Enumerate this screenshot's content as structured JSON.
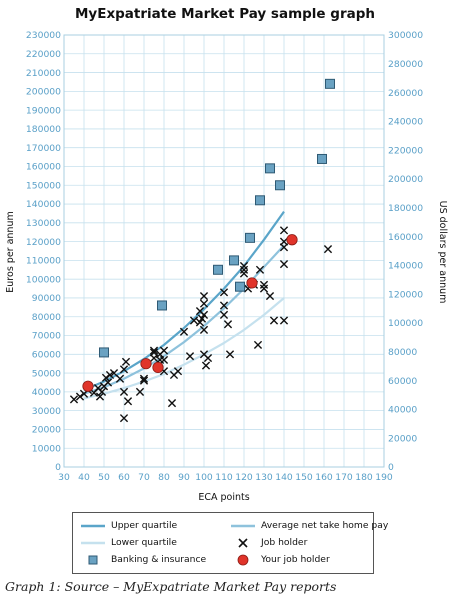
{
  "caption": "Graph 1: Source – MyExpatriate Market Pay reports",
  "colors": {
    "upper_quartile": "#5aa5c9",
    "average": "#8ec2dc",
    "lower_quartile": "#c5e1ee",
    "banking": "#6aa2c2",
    "job_holder": "#111111",
    "your_job_holder": "#e0342a",
    "tick_labels": "#5aa0c8",
    "grid": "#c6e1ee"
  },
  "legend": [
    {
      "key": "upper",
      "label": "Upper quartile",
      "icon": "line-upper"
    },
    {
      "key": "average",
      "label": "Average net take home pay",
      "icon": "line-average"
    },
    {
      "key": "lower",
      "label": "Lower quartile",
      "icon": "line-lower"
    },
    {
      "key": "job",
      "label": "Job holder",
      "icon": "cross-marker"
    },
    {
      "key": "banking",
      "label": "Banking & insurance",
      "icon": "square-marker"
    },
    {
      "key": "your",
      "label": "Your job holder",
      "icon": "red-circle-marker"
    }
  ],
  "chart_data": {
    "type": "scatter",
    "title": "MyExpatriate Market Pay sample graph",
    "xlabel": "ECA points",
    "ylabel": "Euros per annum",
    "y2label": "US dollars per annum",
    "xlim": [
      30,
      190
    ],
    "ylim": [
      0,
      230000
    ],
    "y2lim": [
      0,
      300000
    ],
    "xticks": [
      "30",
      "40",
      "50",
      "60",
      "70",
      "80",
      "90",
      "100",
      "110",
      "120",
      "130",
      "140",
      "150",
      "160",
      "170",
      "180",
      "190"
    ],
    "yticks": [
      "0",
      "10000",
      "20000",
      "30000",
      "40000",
      "50000",
      "60000",
      "70000",
      "80000",
      "90000",
      "100000",
      "110000",
      "120000",
      "130000",
      "140000",
      "150000",
      "160000",
      "170000",
      "180000",
      "190000",
      "200000",
      "210000",
      "220000",
      "230000"
    ],
    "y2ticks": [
      "0",
      "20000",
      "40000",
      "60000",
      "80000",
      "100000",
      "120000",
      "140000",
      "160000",
      "180000",
      "200000",
      "220000",
      "240000",
      "260000",
      "280000",
      "300000"
    ],
    "grid": true,
    "legend_position": "bottom",
    "series": [
      {
        "name": "Upper quartile",
        "kind": "line",
        "x": [
          40,
          50,
          60,
          70,
          80,
          90,
          100,
          110,
          120,
          130,
          140
        ],
        "y": [
          41000,
          45500,
          51000,
          57500,
          65000,
          74000,
          84000,
          95000,
          107000,
          121000,
          136000
        ]
      },
      {
        "name": "Average net take home pay",
        "kind": "line",
        "x": [
          40,
          50,
          60,
          70,
          80,
          90,
          100,
          110,
          120,
          130,
          140
        ],
        "y": [
          39000,
          42500,
          47000,
          52500,
          59000,
          66500,
          75000,
          84500,
          95000,
          106500,
          118000
        ]
      },
      {
        "name": "Lower quartile",
        "kind": "line",
        "x": [
          40,
          50,
          60,
          70,
          80,
          90,
          100,
          110,
          120,
          130,
          140
        ],
        "y": [
          36500,
          39000,
          42000,
          45500,
          49500,
          54500,
          60000,
          66000,
          73000,
          81000,
          90000
        ]
      },
      {
        "name": "Job holder",
        "kind": "scatter",
        "marker": "x",
        "x": [
          35,
          38,
          40,
          42,
          45,
          47,
          48,
          49,
          50,
          51,
          52,
          53,
          55,
          58,
          60,
          60,
          60,
          61,
          62,
          68,
          70,
          70,
          75,
          75,
          75,
          77,
          78,
          78,
          80,
          80,
          80,
          84,
          85,
          87,
          90,
          93,
          95,
          98,
          98,
          99,
          100,
          100,
          100,
          100,
          100,
          101,
          102,
          110,
          110,
          110,
          112,
          113,
          120,
          120,
          120,
          122,
          125,
          127,
          128,
          130,
          130,
          133,
          135,
          140,
          140,
          140,
          140,
          140,
          162
        ],
        "y": [
          36000,
          37500,
          39000,
          41000,
          39500,
          42000,
          37500,
          40000,
          43000,
          47500,
          45000,
          49000,
          50000,
          47000,
          52000,
          40000,
          26000,
          56000,
          35000,
          40000,
          47000,
          46000,
          58000,
          61000,
          62000,
          53000,
          57000,
          60000,
          62000,
          57000,
          51000,
          34000,
          49000,
          51000,
          72000,
          59000,
          78000,
          83000,
          77000,
          79000,
          87000,
          91000,
          81000,
          73000,
          60000,
          54000,
          58000,
          93000,
          86000,
          81000,
          76000,
          60000,
          105000,
          107000,
          103000,
          95000,
          97000,
          65000,
          105000,
          97000,
          95000,
          91000,
          78000,
          126000,
          120000,
          117000,
          108000,
          78000,
          116000
        ]
      },
      {
        "name": "Banking & insurance",
        "kind": "scatter",
        "marker": "square",
        "x": [
          50,
          79,
          107,
          115,
          118,
          123,
          128,
          133,
          138,
          159,
          163
        ],
        "y": [
          61000,
          86000,
          105000,
          110000,
          96000,
          122000,
          142000,
          159000,
          150000,
          164000,
          204000
        ]
      },
      {
        "name": "Your job holder",
        "kind": "scatter",
        "marker": "circle",
        "x": [
          42,
          71,
          77,
          124,
          144
        ],
        "y": [
          43000,
          55000,
          53000,
          98000,
          121000
        ]
      }
    ]
  }
}
